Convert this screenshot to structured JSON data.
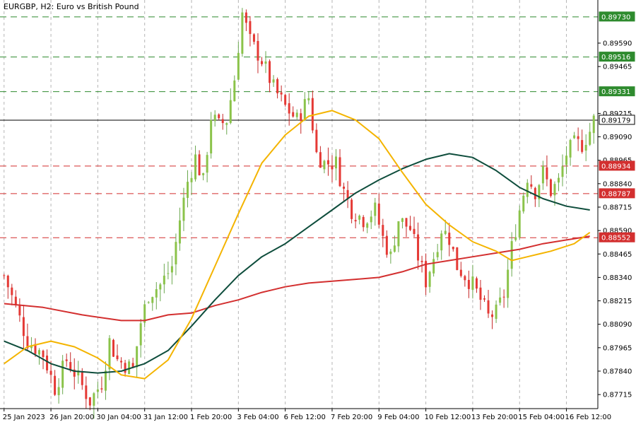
{
  "chart_data": {
    "type": "candlestick",
    "title": "EURGBP, H2:  Euro vs British Pound",
    "xlabel": "",
    "ylabel": "",
    "ylim": [
      0.8764,
      0.8982
    ],
    "grid": true,
    "colors": {
      "bull": "#8bc34a",
      "bear": "#e53935",
      "wick": "#777777",
      "ma_fast": "#f4b400",
      "ma_mid": "#0e4d3c",
      "ma_slow": "#d32f2f",
      "resistance": "#2e8b2e",
      "support": "#d32f2f",
      "current": "#000000"
    },
    "y_ticks": [
      "0.89590",
      "0.89465",
      "0.89215",
      "0.89090",
      "0.88965",
      "0.88840",
      "0.88715",
      "0.88590",
      "0.88465",
      "0.88340",
      "0.88215",
      "0.88090",
      "0.87965",
      "0.87840",
      "0.87715"
    ],
    "x_ticks": [
      {
        "i": 0,
        "label": "25 Jan 2023"
      },
      {
        "i": 12,
        "label": "26 Jan 20:00"
      },
      {
        "i": 24,
        "label": "30 Jan 04:00"
      },
      {
        "i": 36,
        "label": "31 Jan 12:00"
      },
      {
        "i": 48,
        "label": "1 Feb 20:00"
      },
      {
        "i": 60,
        "label": "3 Feb 04:00"
      },
      {
        "i": 72,
        "label": "6 Feb 12:00"
      },
      {
        "i": 84,
        "label": "7 Feb 20:00"
      },
      {
        "i": 96,
        "label": "9 Feb 04:00"
      },
      {
        "i": 108,
        "label": "10 Feb 12:00"
      },
      {
        "i": 120,
        "label": "13 Feb 20:00"
      },
      {
        "i": 132,
        "label": "15 Feb 04:00"
      },
      {
        "i": 144,
        "label": "16 Feb 12:00"
      }
    ],
    "levels": [
      {
        "kind": "resistance",
        "label": "0.89730",
        "value": 0.8973
      },
      {
        "kind": "resistance",
        "label": "0.89516",
        "value": 0.89516
      },
      {
        "kind": "resistance",
        "label": "0.89331",
        "value": 0.89331
      },
      {
        "kind": "current",
        "label": "0.89179",
        "value": 0.89179
      },
      {
        "kind": "support",
        "label": "0.88934",
        "value": 0.88934
      },
      {
        "kind": "support",
        "label": "0.88787",
        "value": 0.88787
      },
      {
        "kind": "support",
        "label": "0.88552",
        "value": 0.88552
      }
    ],
    "candle_count": 152,
    "price_anchors": [
      [
        0,
        0.8835
      ],
      [
        3,
        0.8818
      ],
      [
        6,
        0.88
      ],
      [
        10,
        0.8793
      ],
      [
        13,
        0.8775
      ],
      [
        16,
        0.879
      ],
      [
        19,
        0.878
      ],
      [
        22,
        0.8768
      ],
      [
        25,
        0.8778
      ],
      [
        27,
        0.88
      ],
      [
        29,
        0.879
      ],
      [
        33,
        0.8785
      ],
      [
        35,
        0.881
      ],
      [
        37,
        0.8825
      ],
      [
        40,
        0.883
      ],
      [
        43,
        0.884
      ],
      [
        45,
        0.8865
      ],
      [
        47,
        0.8885
      ],
      [
        49,
        0.8898
      ],
      [
        51,
        0.8885
      ],
      [
        53,
        0.892
      ],
      [
        55,
        0.8915
      ],
      [
        57,
        0.8918
      ],
      [
        59,
        0.894
      ],
      [
        61,
        0.8975
      ],
      [
        63,
        0.896
      ],
      [
        66,
        0.895
      ],
      [
        69,
        0.8935
      ],
      [
        72,
        0.8925
      ],
      [
        75,
        0.8918
      ],
      [
        78,
        0.893
      ],
      [
        80,
        0.89
      ],
      [
        82,
        0.8895
      ],
      [
        85,
        0.8895
      ],
      [
        87,
        0.888
      ],
      [
        89,
        0.887
      ],
      [
        92,
        0.8865
      ],
      [
        95,
        0.887
      ],
      [
        97,
        0.8855
      ],
      [
        99,
        0.8845
      ],
      [
        101,
        0.8865
      ],
      [
        104,
        0.886
      ],
      [
        106,
        0.8845
      ],
      [
        108,
        0.8832
      ],
      [
        110,
        0.8845
      ],
      [
        112,
        0.886
      ],
      [
        114,
        0.8855
      ],
      [
        116,
        0.884
      ],
      [
        118,
        0.8835
      ],
      [
        120,
        0.883
      ],
      [
        122,
        0.8822
      ],
      [
        124,
        0.8813
      ],
      [
        126,
        0.8815
      ],
      [
        128,
        0.8825
      ],
      [
        130,
        0.885
      ],
      [
        132,
        0.887
      ],
      [
        134,
        0.8888
      ],
      [
        136,
        0.888
      ],
      [
        138,
        0.889
      ],
      [
        140,
        0.888
      ],
      [
        142,
        0.8885
      ],
      [
        144,
        0.89
      ],
      [
        146,
        0.8905
      ],
      [
        148,
        0.8905
      ],
      [
        150,
        0.8912
      ],
      [
        151,
        0.8918
      ]
    ],
    "ma_fast": [
      [
        0,
        0.8788
      ],
      [
        6,
        0.8797
      ],
      [
        12,
        0.88
      ],
      [
        18,
        0.8797
      ],
      [
        24,
        0.8791
      ],
      [
        30,
        0.8782
      ],
      [
        36,
        0.878
      ],
      [
        42,
        0.879
      ],
      [
        48,
        0.8812
      ],
      [
        54,
        0.884
      ],
      [
        60,
        0.8868
      ],
      [
        66,
        0.8895
      ],
      [
        72,
        0.891
      ],
      [
        78,
        0.892
      ],
      [
        84,
        0.8923
      ],
      [
        90,
        0.8918
      ],
      [
        96,
        0.8908
      ],
      [
        102,
        0.889
      ],
      [
        108,
        0.8873
      ],
      [
        114,
        0.8862
      ],
      [
        120,
        0.8853
      ],
      [
        126,
        0.8848
      ],
      [
        130,
        0.8843
      ],
      [
        134,
        0.8845
      ],
      [
        140,
        0.8848
      ],
      [
        146,
        0.8852
      ],
      [
        150,
        0.8858
      ]
    ],
    "ma_mid": [
      [
        0,
        0.88
      ],
      [
        6,
        0.8795
      ],
      [
        12,
        0.8788
      ],
      [
        18,
        0.8784
      ],
      [
        24,
        0.8783
      ],
      [
        30,
        0.8784
      ],
      [
        36,
        0.8788
      ],
      [
        42,
        0.8795
      ],
      [
        48,
        0.8808
      ],
      [
        54,
        0.8822
      ],
      [
        60,
        0.8835
      ],
      [
        66,
        0.8845
      ],
      [
        72,
        0.8852
      ],
      [
        78,
        0.8861
      ],
      [
        84,
        0.887
      ],
      [
        90,
        0.8879
      ],
      [
        96,
        0.8886
      ],
      [
        102,
        0.8892
      ],
      [
        108,
        0.8897
      ],
      [
        114,
        0.89
      ],
      [
        120,
        0.8898
      ],
      [
        126,
        0.8891
      ],
      [
        132,
        0.8882
      ],
      [
        138,
        0.8876
      ],
      [
        144,
        0.8872
      ],
      [
        150,
        0.887
      ]
    ],
    "ma_slow": [
      [
        0,
        0.882
      ],
      [
        10,
        0.8818
      ],
      [
        20,
        0.8814
      ],
      [
        30,
        0.8811
      ],
      [
        36,
        0.8811
      ],
      [
        42,
        0.8814
      ],
      [
        48,
        0.8815
      ],
      [
        54,
        0.8819
      ],
      [
        60,
        0.8822
      ],
      [
        66,
        0.8826
      ],
      [
        72,
        0.8829
      ],
      [
        78,
        0.8831
      ],
      [
        84,
        0.8832
      ],
      [
        90,
        0.8833
      ],
      [
        96,
        0.8834
      ],
      [
        102,
        0.8837
      ],
      [
        108,
        0.8841
      ],
      [
        114,
        0.8843
      ],
      [
        120,
        0.8845
      ],
      [
        126,
        0.8847
      ],
      [
        132,
        0.8849
      ],
      [
        138,
        0.8852
      ],
      [
        144,
        0.8854
      ],
      [
        150,
        0.8856
      ]
    ]
  }
}
